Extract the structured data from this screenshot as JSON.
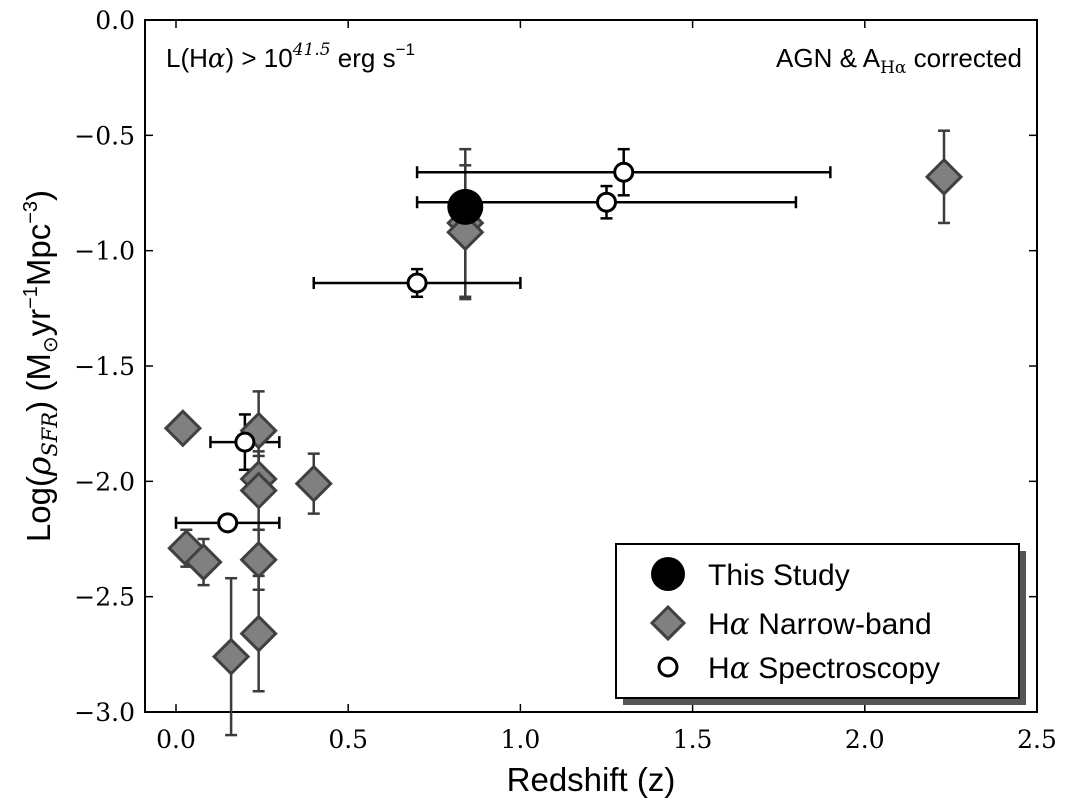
{
  "chart_data": {
    "type": "scatter",
    "title": "",
    "xlabel": "Redshift (z)",
    "ylabel_parts": [
      "Log(",
      "ρ",
      "SFR",
      ") (M",
      "⊙",
      "yr",
      "−1",
      "Mpc",
      "−3",
      ")"
    ],
    "xlim": [
      -0.09,
      2.5
    ],
    "ylim": [
      -3.0,
      0.0
    ],
    "x_ticks": [
      0.0,
      0.5,
      1.0,
      1.5,
      2.0,
      2.5
    ],
    "x_tick_labels": [
      "0.0",
      "0.5",
      "1.0",
      "1.5",
      "2.0",
      "2.5"
    ],
    "y_ticks": [
      0.0,
      -0.5,
      -1.0,
      -1.5,
      -2.0,
      -2.5,
      -3.0
    ],
    "y_tick_labels": [
      "0.0",
      "−0.5",
      "−1.0",
      "−1.5",
      "−2.0",
      "−2.5",
      "−3.0"
    ],
    "annotations": {
      "left_parts": [
        "L(H",
        "α",
        ") > 10",
        "41.5",
        "  erg s",
        "−1"
      ],
      "right_parts": [
        "AGN & A",
        "Hα",
        " corrected"
      ]
    },
    "legend": {
      "position": "lower-right",
      "entries": [
        {
          "label": "This Study",
          "marker": "filled-circle"
        },
        {
          "label_prefix": "H",
          "label_greek": "α",
          "label_suffix": " Narrow-band",
          "marker": "diamond"
        },
        {
          "label_prefix": "H",
          "label_greek": "α",
          "label_suffix": " Spectroscopy",
          "marker": "open-circle"
        }
      ]
    },
    "colors": {
      "this_study": "#000000",
      "narrow_band_fill": "#808080",
      "narrow_band_edge": "#404040",
      "error_bar": "#3c3c3c",
      "spectroscopy_edge": "#000000",
      "spectroscopy_fill": "#ffffff"
    },
    "series": [
      {
        "name": "This Study",
        "points": [
          {
            "x": 0.84,
            "y": -0.81
          }
        ]
      },
      {
        "name": "Hα Narrow-band",
        "points": [
          {
            "x": 0.02,
            "y": -1.77
          },
          {
            "x": 0.24,
            "y": -1.78,
            "yerr": [
              0.17,
              0.17
            ]
          },
          {
            "x": 0.24,
            "y": -1.99,
            "yerr": [
              0.1,
              0.1
            ]
          },
          {
            "x": 0.24,
            "y": -2.04,
            "yerr": [
              0.17,
              0.17
            ]
          },
          {
            "x": 0.4,
            "y": -2.01,
            "yerr": [
              0.13,
              0.13
            ]
          },
          {
            "x": 0.03,
            "y": -2.29,
            "yerr": [
              0.08,
              0.08
            ]
          },
          {
            "x": 0.08,
            "y": -2.35,
            "yerr": [
              0.1,
              0.1
            ]
          },
          {
            "x": 0.24,
            "y": -2.34,
            "yerr": [
              0.13,
              0.13
            ]
          },
          {
            "x": 0.24,
            "y": -2.66,
            "yerr": [
              0.25,
              0.25
            ]
          },
          {
            "x": 0.16,
            "y": -2.76,
            "yerr": [
              0.34,
              0.34
            ]
          },
          {
            "x": 0.84,
            "y": -0.88,
            "yerr": [
              0.32,
              0.32
            ]
          },
          {
            "x": 0.84,
            "y": -0.92,
            "yerr": [
              0.29,
              0.29
            ]
          },
          {
            "x": 2.23,
            "y": -0.68,
            "xerr": [
              0.03,
              0.03
            ],
            "yerr": [
              0.2,
              0.2
            ]
          }
        ]
      },
      {
        "name": "Hα Spectroscopy",
        "points": [
          {
            "x": 0.2,
            "y": -1.83,
            "xerr": [
              0.1,
              0.1
            ],
            "yerr": [
              0.12,
              0.12
            ]
          },
          {
            "x": 0.15,
            "y": -2.18,
            "xerr": [
              0.15,
              0.15
            ]
          },
          {
            "x": 0.7,
            "y": -1.14,
            "xerr": [
              0.3,
              0.3
            ],
            "yerr": [
              0.06,
              0.06
            ]
          },
          {
            "x": 1.25,
            "y": -0.79,
            "xerr": [
              0.55,
              0.55
            ],
            "yerr": [
              0.07,
              0.07
            ]
          },
          {
            "x": 1.3,
            "y": -0.66,
            "xerr": [
              0.6,
              0.6
            ],
            "yerr": [
              0.1,
              0.1
            ]
          }
        ]
      }
    ]
  }
}
